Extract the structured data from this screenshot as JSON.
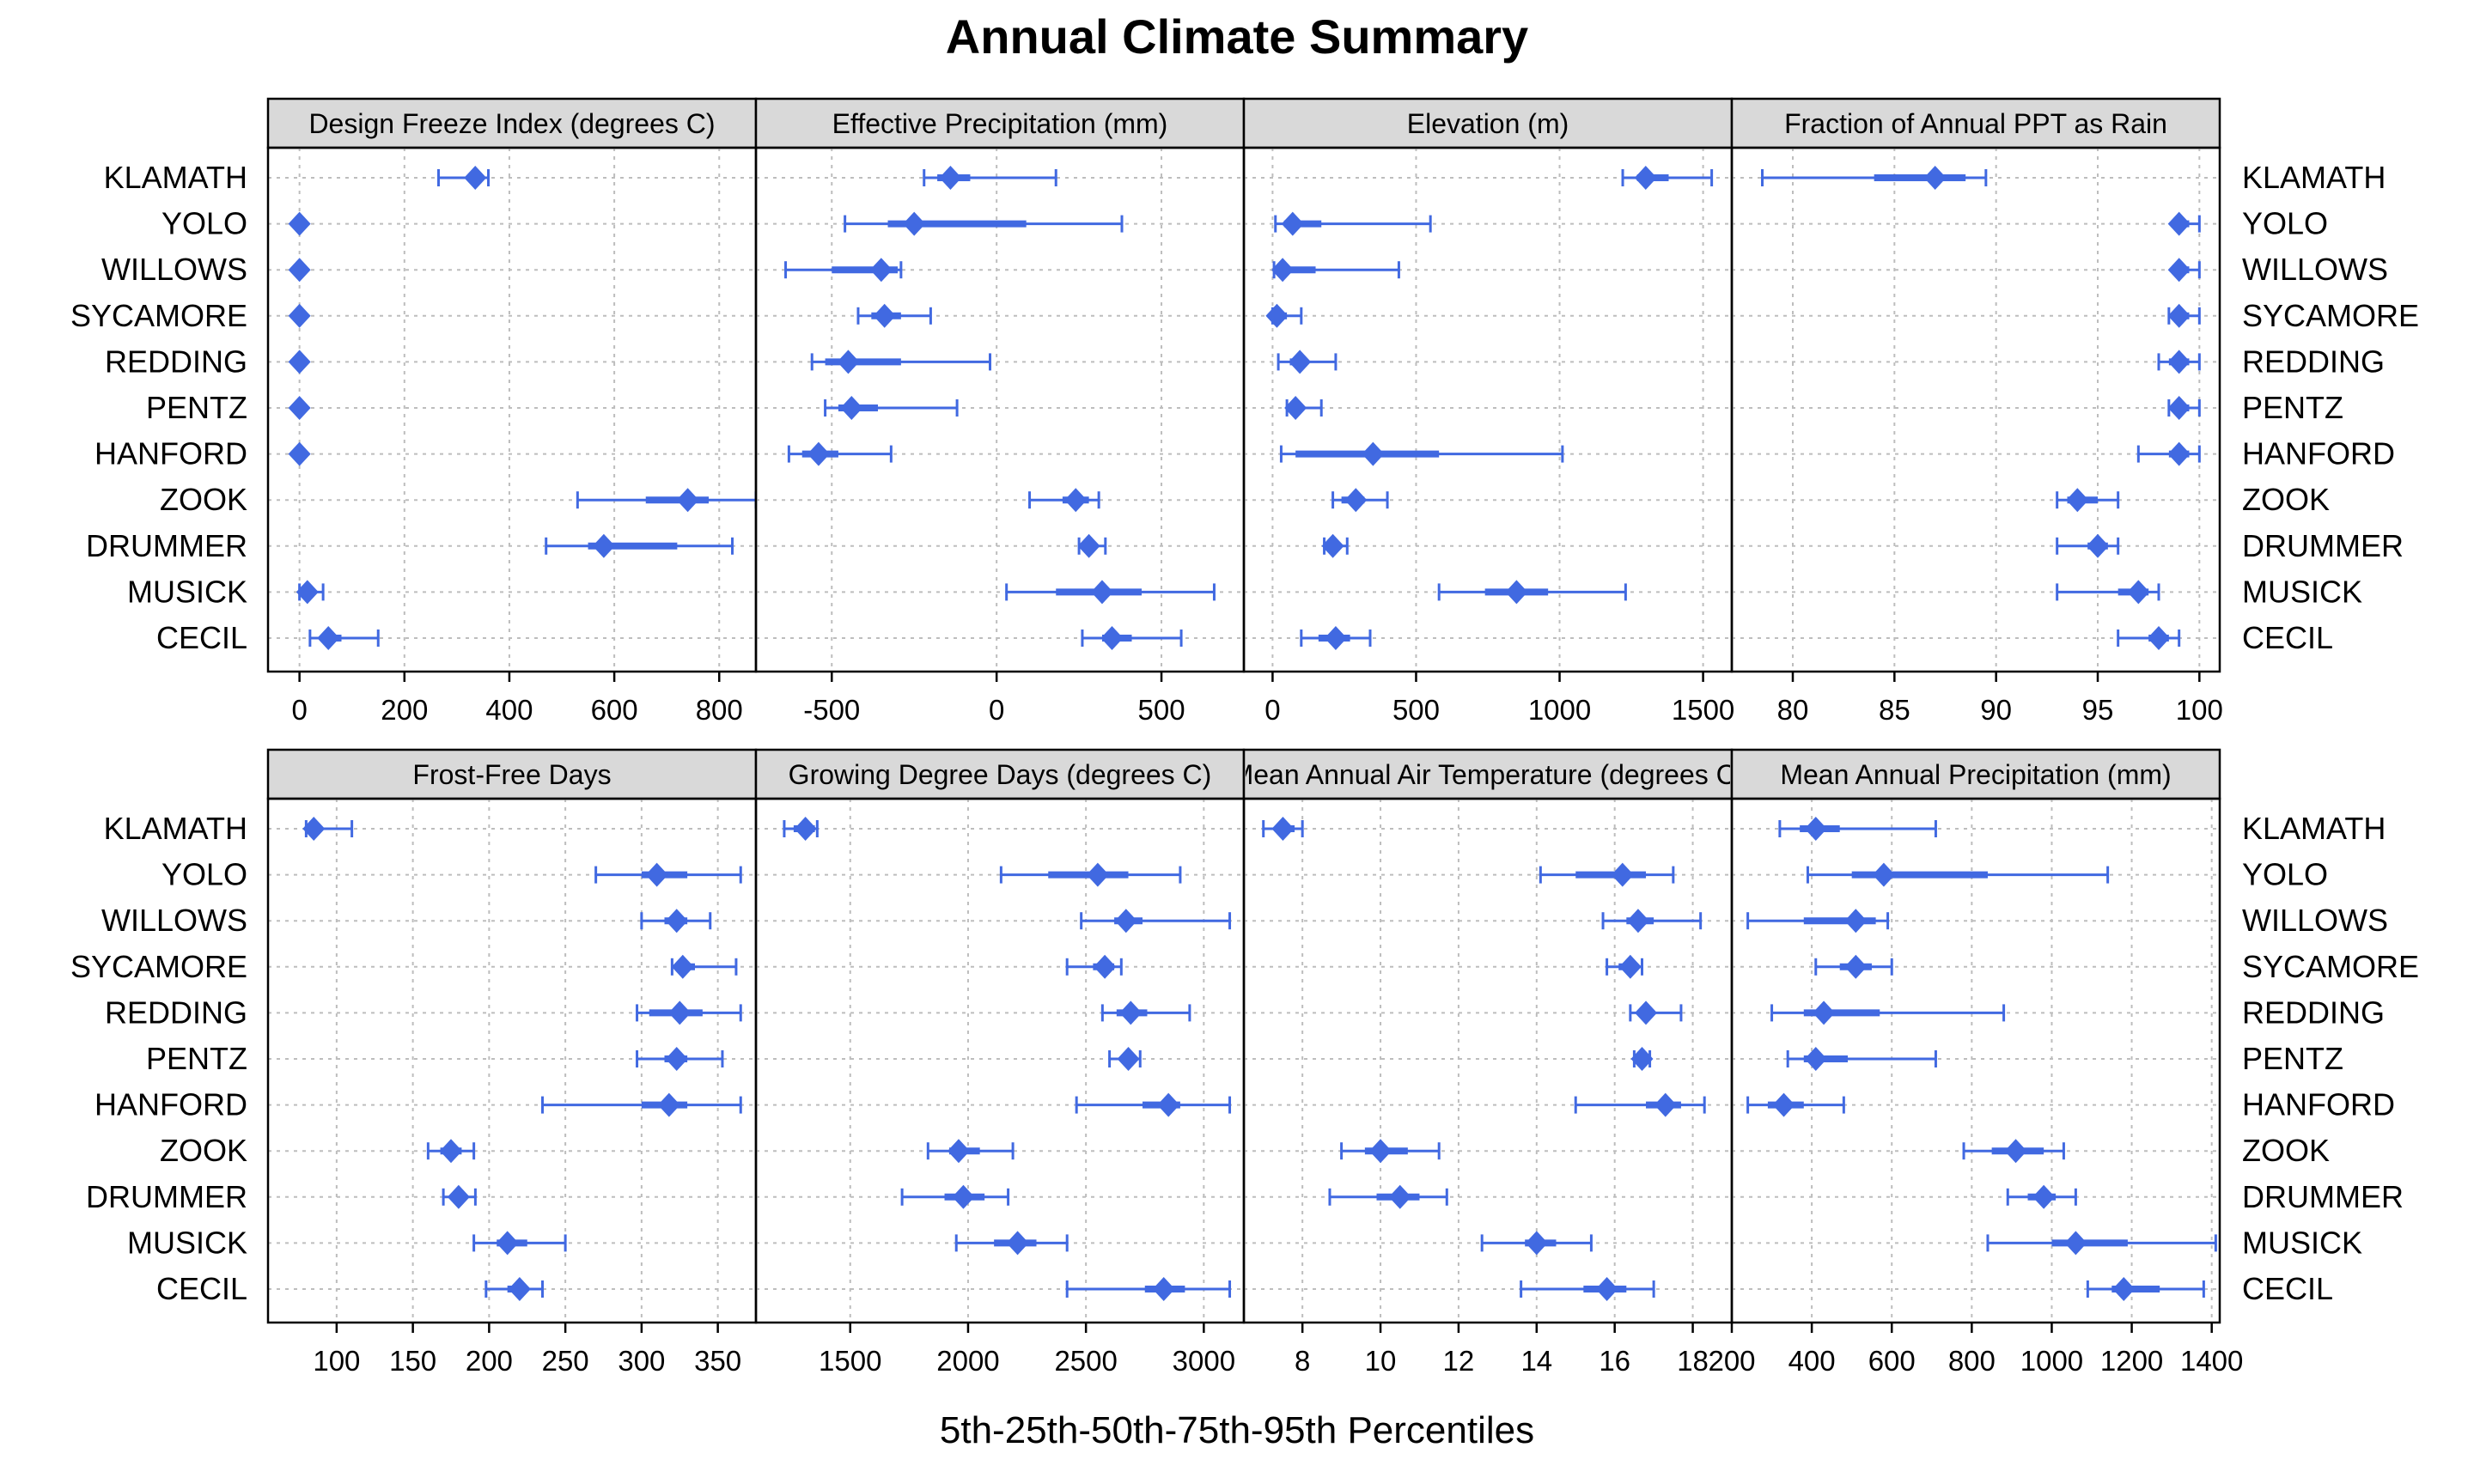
{
  "title": "Annual Climate Summary",
  "xlabel": "5th-25th-50th-75th-95th Percentiles",
  "colors": {
    "series": "#4169e1",
    "strip": "#d9d9d9",
    "grid": "#bdbdbd"
  },
  "chart_data": {
    "type": "dotplot-percentiles",
    "sites": [
      "KLAMATH",
      "YOLO",
      "WILLOWS",
      "SYCAMORE",
      "REDDING",
      "PENTZ",
      "HANFORD",
      "ZOOK",
      "DRUMMER",
      "MUSICK",
      "CECIL"
    ],
    "percentile_order": [
      "p5",
      "p25",
      "p50",
      "p75",
      "p95"
    ],
    "panels": [
      {
        "title": "Design Freeze Index (degrees C)",
        "xlim": [
          -60,
          870
        ],
        "ticks": [
          0,
          200,
          400,
          600,
          800
        ],
        "values": [
          [
            265,
            320,
            335,
            345,
            360
          ],
          [
            0,
            0,
            0,
            0,
            0
          ],
          [
            0,
            0,
            0,
            0,
            0
          ],
          [
            0,
            0,
            0,
            0,
            0
          ],
          [
            0,
            0,
            0,
            0,
            0
          ],
          [
            0,
            0,
            0,
            0,
            0
          ],
          [
            0,
            0,
            0,
            0,
            0
          ],
          [
            530,
            660,
            740,
            780,
            870
          ],
          [
            470,
            550,
            580,
            720,
            825
          ],
          [
            0,
            5,
            15,
            25,
            45
          ],
          [
            20,
            40,
            55,
            80,
            150
          ]
        ]
      },
      {
        "title": "Effective Precipitation (mm)",
        "xlim": [
          -730,
          750
        ],
        "ticks": [
          -500,
          0,
          500
        ],
        "values": [
          [
            -220,
            -180,
            -140,
            -80,
            180
          ],
          [
            -460,
            -330,
            -250,
            90,
            380
          ],
          [
            -640,
            -500,
            -350,
            -300,
            -290
          ],
          [
            -420,
            -380,
            -340,
            -290,
            -200
          ],
          [
            -560,
            -520,
            -450,
            -290,
            -20
          ],
          [
            -520,
            -480,
            -440,
            -360,
            -120
          ],
          [
            -630,
            -590,
            -540,
            -480,
            -320
          ],
          [
            100,
            200,
            240,
            280,
            310
          ],
          [
            250,
            270,
            280,
            300,
            330
          ],
          [
            30,
            180,
            320,
            440,
            660
          ],
          [
            260,
            320,
            350,
            410,
            560
          ]
        ]
      },
      {
        "title": "Elevation (m)",
        "xlim": [
          -100,
          1600
        ],
        "ticks": [
          0,
          500,
          1000,
          1500
        ],
        "values": [
          [
            1220,
            1270,
            1300,
            1380,
            1530
          ],
          [
            10,
            40,
            70,
            170,
            550
          ],
          [
            5,
            20,
            35,
            150,
            440
          ],
          [
            0,
            10,
            15,
            50,
            100
          ],
          [
            20,
            60,
            95,
            120,
            220
          ],
          [
            50,
            70,
            80,
            90,
            170
          ],
          [
            30,
            80,
            350,
            580,
            1010
          ],
          [
            210,
            240,
            290,
            320,
            400
          ],
          [
            180,
            200,
            210,
            230,
            260
          ],
          [
            580,
            740,
            850,
            960,
            1230
          ],
          [
            100,
            160,
            220,
            270,
            340
          ]
        ]
      },
      {
        "title": "Fraction of Annual PPT as Rain",
        "xlim": [
          77,
          101
        ],
        "ticks": [
          80,
          85,
          90,
          95,
          100
        ],
        "values": [
          [
            78.5,
            84,
            87,
            88.5,
            89.5
          ],
          [
            99,
            99,
            99,
            99.5,
            100
          ],
          [
            99,
            99,
            99,
            99.5,
            100
          ],
          [
            98.5,
            99,
            99,
            99.5,
            100
          ],
          [
            98,
            98.5,
            99,
            99.5,
            100
          ],
          [
            98.5,
            99,
            99,
            99.5,
            100
          ],
          [
            97,
            98.5,
            99,
            99.5,
            100
          ],
          [
            93,
            93.5,
            94,
            95,
            96
          ],
          [
            93,
            94.5,
            95,
            95.5,
            96
          ],
          [
            93,
            96,
            97,
            97.5,
            98
          ],
          [
            96,
            97.5,
            98,
            98.5,
            99
          ]
        ]
      },
      {
        "title": "Frost-Free Days",
        "xlim": [
          55,
          375
        ],
        "ticks": [
          100,
          150,
          200,
          250,
          300,
          350
        ],
        "values": [
          [
            80,
            82,
            85,
            90,
            110
          ],
          [
            270,
            300,
            310,
            330,
            365
          ],
          [
            300,
            315,
            323,
            330,
            345
          ],
          [
            320,
            323,
            327,
            335,
            362
          ],
          [
            297,
            305,
            325,
            340,
            365
          ],
          [
            297,
            315,
            323,
            330,
            353
          ],
          [
            235,
            300,
            318,
            330,
            365
          ],
          [
            160,
            168,
            175,
            182,
            190
          ],
          [
            170,
            175,
            180,
            185,
            191
          ],
          [
            190,
            205,
            212,
            225,
            250
          ],
          [
            198,
            212,
            220,
            225,
            235
          ]
        ]
      },
      {
        "title": "Growing Degree Days (degrees C)",
        "xlim": [
          1100,
          3170
        ],
        "ticks": [
          1500,
          2000,
          2500,
          3000
        ],
        "values": [
          [
            1220,
            1260,
            1310,
            1350,
            1360
          ],
          [
            2140,
            2340,
            2550,
            2680,
            2900
          ],
          [
            2480,
            2620,
            2670,
            2740,
            3110
          ],
          [
            2420,
            2530,
            2580,
            2620,
            2650
          ],
          [
            2570,
            2630,
            2690,
            2760,
            2940
          ],
          [
            2600,
            2650,
            2680,
            2700,
            2730
          ],
          [
            2460,
            2740,
            2850,
            2900,
            3110
          ],
          [
            1830,
            1920,
            1960,
            2050,
            2190
          ],
          [
            1720,
            1900,
            1980,
            2070,
            2170
          ],
          [
            1950,
            2110,
            2210,
            2290,
            2420
          ],
          [
            2420,
            2750,
            2830,
            2920,
            3110
          ]
        ]
      },
      {
        "title": "Mean Annual Air Temperature (degrees C)",
        "xlim": [
          6.5,
          19
        ],
        "ticks": [
          8,
          10,
          12,
          14,
          16,
          18
        ],
        "values": [
          [
            7.0,
            7.3,
            7.5,
            7.8,
            8.0
          ],
          [
            14.1,
            15.0,
            16.2,
            16.8,
            17.5
          ],
          [
            15.7,
            16.3,
            16.6,
            17.0,
            18.2
          ],
          [
            15.8,
            16.1,
            16.4,
            16.6,
            16.7
          ],
          [
            16.4,
            16.6,
            16.8,
            17.0,
            17.7
          ],
          [
            16.5,
            16.6,
            16.7,
            16.8,
            16.9
          ],
          [
            15.0,
            16.8,
            17.3,
            17.7,
            18.3
          ],
          [
            9.0,
            9.6,
            10.0,
            10.7,
            11.5
          ],
          [
            8.7,
            9.9,
            10.5,
            11.0,
            11.7
          ],
          [
            12.6,
            13.7,
            14.0,
            14.5,
            15.4
          ],
          [
            13.6,
            15.2,
            15.8,
            16.3,
            17.0
          ]
        ]
      },
      {
        "title": "Mean Annual Precipitation (mm)",
        "xlim": [
          200,
          1420
        ],
        "ticks": [
          200,
          400,
          600,
          800,
          1000,
          1200,
          1400
        ],
        "values": [
          [
            320,
            370,
            410,
            470,
            710
          ],
          [
            390,
            500,
            580,
            840,
            1140
          ],
          [
            240,
            380,
            510,
            560,
            590
          ],
          [
            410,
            470,
            510,
            550,
            600
          ],
          [
            300,
            380,
            430,
            570,
            880
          ],
          [
            340,
            380,
            410,
            490,
            710
          ],
          [
            240,
            290,
            330,
            380,
            480
          ],
          [
            780,
            850,
            910,
            980,
            1030
          ],
          [
            890,
            940,
            980,
            1010,
            1060
          ],
          [
            840,
            1000,
            1060,
            1190,
            1410
          ],
          [
            1090,
            1150,
            1180,
            1270,
            1380
          ]
        ]
      }
    ]
  }
}
